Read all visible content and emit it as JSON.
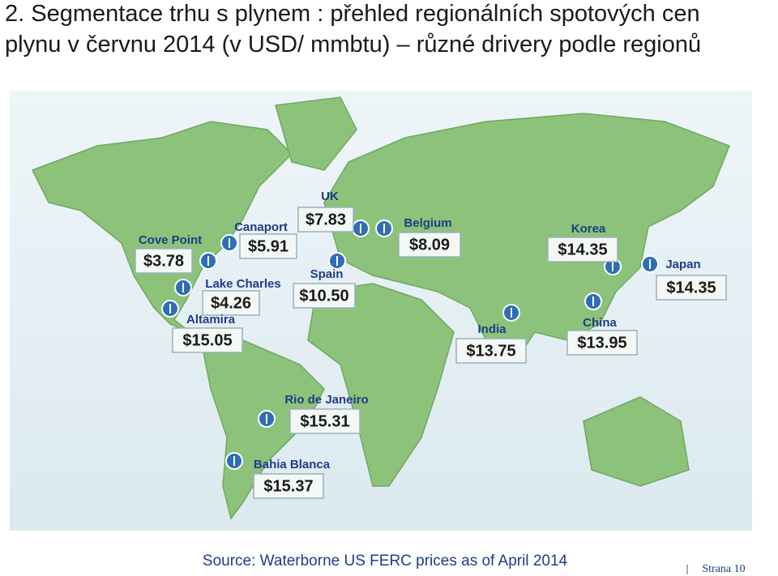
{
  "header": {
    "title_lines": [
      "2. Segmentace trhu s plynem : přehled regionálních spotových cen",
      "plynu v červnu 2014 (v USD/ mmbtu) – různé drivery podle regionů"
    ]
  },
  "locations": [
    {
      "name": "UK",
      "price": "$7.83"
    },
    {
      "name": "Belgium",
      "price": "$8.09"
    },
    {
      "name": "Canaport",
      "price": "$5.91"
    },
    {
      "name": "Cove Point",
      "price": "$3.78"
    },
    {
      "name": "Spain",
      "price": "$10.50"
    },
    {
      "name": "Lake Charles",
      "price": "$4.26"
    },
    {
      "name": "Altamira",
      "price": "$15.05"
    },
    {
      "name": "Korea",
      "price": "$14.35"
    },
    {
      "name": "Japan",
      "price": "$14.35"
    },
    {
      "name": "India",
      "price": "$13.75"
    },
    {
      "name": "China",
      "price": "$13.95"
    },
    {
      "name": "Rio de Janeiro",
      "price": "$15.31"
    },
    {
      "name": "Bahia Blanca",
      "price": "$15.37"
    }
  ],
  "source": "Source: Waterborne US FERC prices as of April 2014",
  "footer": {
    "page": "Strana 10"
  }
}
